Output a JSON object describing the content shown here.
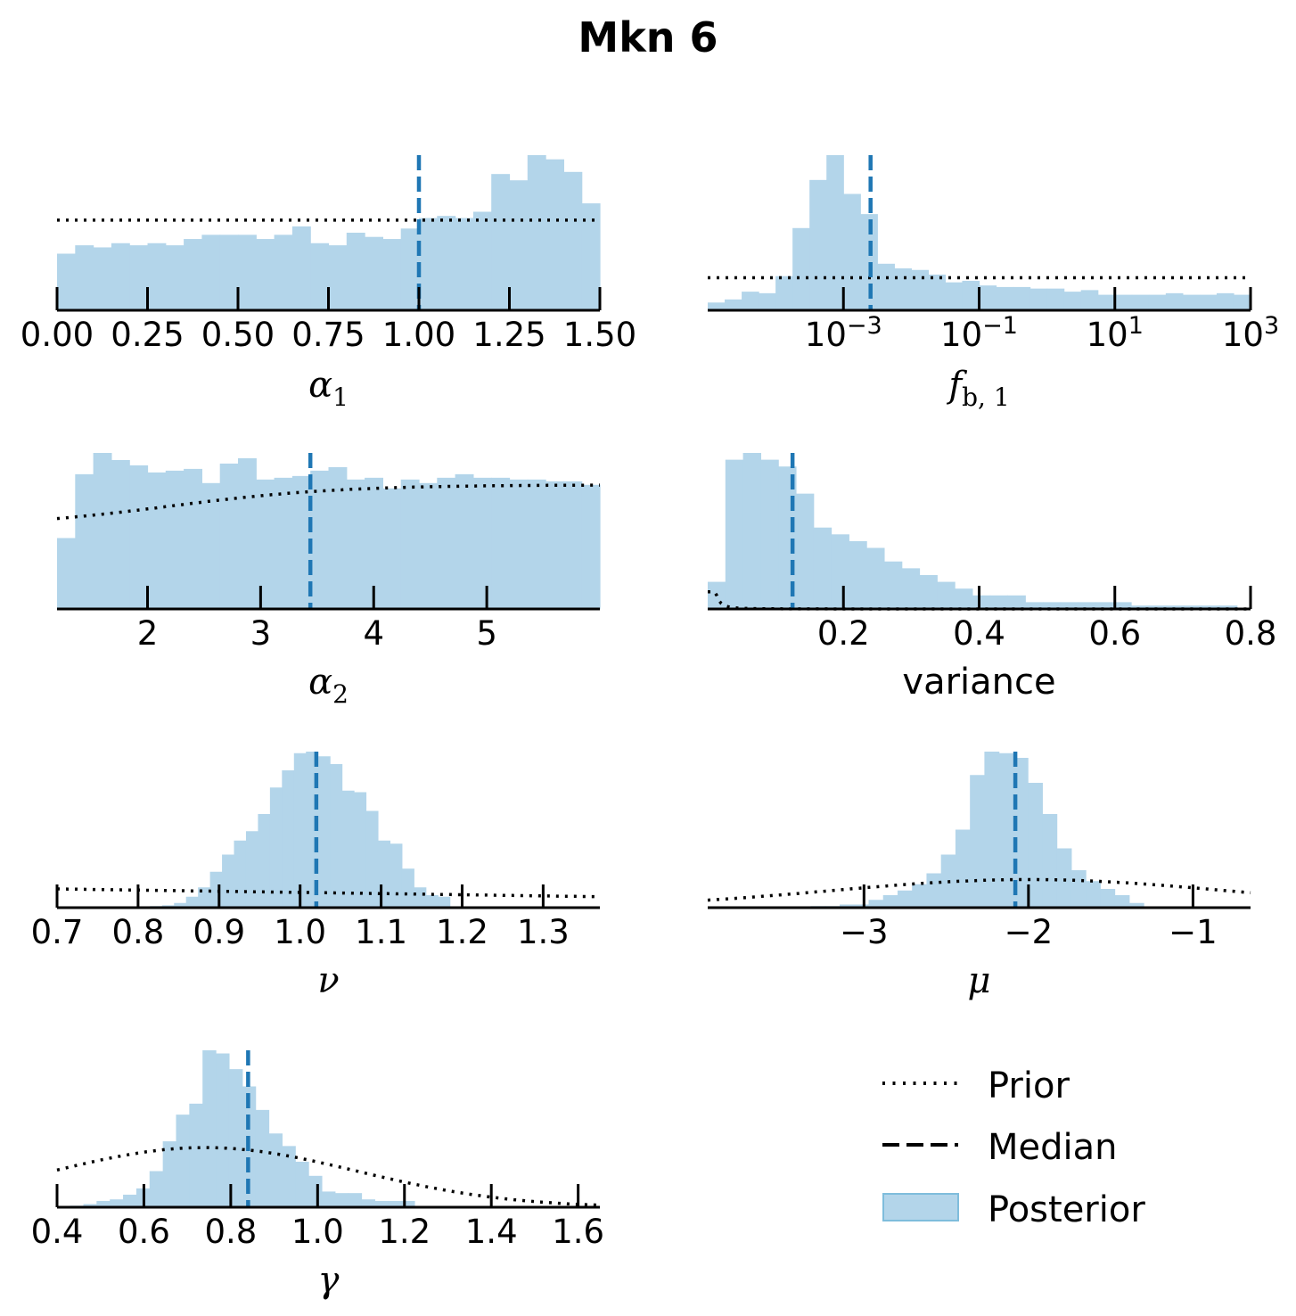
{
  "title": "Mkn 6",
  "colors": {
    "posterior_fill": "#b3d5ea",
    "median_line": "#1f77b4",
    "prior_line": "#000000",
    "legend_patch_edge": "#7fbddc"
  },
  "legend": {
    "prior": "Prior",
    "median": "Median",
    "posterior": "Posterior"
  },
  "chart_data": [
    {
      "type": "histogram",
      "name": "alpha1",
      "xlabel_main": "α",
      "xlabel_sub": "1",
      "scale": "linear",
      "xlim": [
        0.0,
        1.5
      ],
      "ticks": [
        0.0,
        0.25,
        0.5,
        0.75,
        1.0,
        1.25,
        1.5
      ],
      "tick_labels": [
        "0.00",
        "0.25",
        "0.50",
        "0.75",
        "1.00",
        "1.25",
        "1.50"
      ],
      "median": 1.0,
      "bins": {
        "start": 0.0,
        "width": 0.05,
        "counts": [
          27,
          31,
          30,
          32,
          31,
          32,
          31,
          34,
          36,
          36,
          36,
          34,
          36,
          40,
          32,
          31,
          37,
          35,
          34,
          39,
          44,
          45,
          44,
          47,
          65,
          62,
          74,
          72,
          66,
          51
        ]
      },
      "prior": {
        "kind": "uniform",
        "value": 43
      }
    },
    {
      "type": "histogram",
      "name": "f_b1",
      "xlabel_main": "f",
      "xlabel_sub": "b, 1",
      "scale": "log10",
      "xlim": [
        -5.0,
        3.0
      ],
      "ticks": [
        -3,
        -1,
        1,
        3
      ],
      "tick_labels": [
        "10^-3",
        "10^-1",
        "10^1",
        "10^3"
      ],
      "median": -2.6,
      "bins": {
        "start": -5.0,
        "width": 0.25,
        "counts": [
          5,
          7,
          12,
          11,
          22,
          53,
          84,
          100,
          75,
          62,
          30,
          27,
          26,
          23,
          18,
          19,
          16,
          15,
          15,
          14,
          14,
          12,
          13,
          10,
          10,
          10,
          10,
          11,
          10,
          10,
          11,
          10
        ]
      },
      "prior": {
        "kind": "uniform",
        "value": 21
      }
    },
    {
      "type": "histogram",
      "name": "alpha2",
      "xlabel_main": "α",
      "xlabel_sub": "2",
      "scale": "linear",
      "xlim": [
        1.2,
        6.0
      ],
      "ticks": [
        2,
        3,
        4,
        5
      ],
      "tick_labels": [
        "2",
        "3",
        "4",
        "5"
      ],
      "median": 3.44,
      "bins": {
        "start": 1.2,
        "width": 0.16,
        "counts": [
          40,
          76,
          88,
          84,
          81,
          77,
          78,
          79,
          71,
          82,
          85,
          73,
          74,
          75,
          78,
          80,
          73,
          74,
          68,
          73,
          71,
          74,
          76,
          74,
          74,
          73,
          73,
          72,
          72,
          70
        ]
      },
      "prior": {
        "kind": "sigmoid",
        "low": 46,
        "high": 70,
        "mid": 2.2,
        "scale": 0.75
      }
    },
    {
      "type": "histogram",
      "name": "variance",
      "xlabel_main": "variance",
      "xlabel_sub": "",
      "scale": "linear",
      "xlim": [
        0.0,
        0.8
      ],
      "ticks": [
        0.2,
        0.4,
        0.6,
        0.8
      ],
      "tick_labels": [
        "0.2",
        "0.4",
        "0.6",
        "0.8"
      ],
      "median": 0.125,
      "bins": {
        "start": 0.0,
        "width": 0.026,
        "counts": [
          4,
          22,
          23,
          22,
          21,
          17,
          12,
          11,
          10,
          9,
          7,
          6,
          5,
          4,
          3,
          2,
          2,
          2,
          1,
          1,
          1,
          1,
          1,
          1,
          0.5,
          0.5,
          0.5,
          0.5,
          0.5,
          0.5
        ]
      },
      "prior": {
        "kind": "power",
        "amp": 0.00015,
        "exp": -2.2,
        "x0": 0.0
      }
    },
    {
      "type": "histogram",
      "name": "nu",
      "xlabel_main": "ν",
      "xlabel_sub": "",
      "scale": "linear",
      "xlim": [
        0.7,
        1.37
      ],
      "ticks": [
        0.7,
        0.8,
        0.9,
        1.0,
        1.1,
        1.2,
        1.3
      ],
      "tick_labels": [
        "0.7",
        "0.8",
        "0.9",
        "1.0",
        "1.1",
        "1.2",
        "1.3"
      ],
      "median": 1.02,
      "bins": {
        "start": 0.8,
        "width": 0.0148,
        "counts": [
          0.5,
          1,
          1.5,
          3,
          7,
          13,
          23,
          34,
          43,
          49,
          60,
          77,
          88,
          99,
          100,
          97,
          92,
          75,
          74,
          62,
          43,
          41,
          25,
          13,
          8,
          7
        ]
      },
      "prior": {
        "kind": "linear",
        "v0": 12,
        "v1": 7
      }
    },
    {
      "type": "histogram",
      "name": "mu",
      "xlabel_main": "μ",
      "xlabel_sub": "",
      "scale": "linear",
      "xlim": [
        -3.95,
        -0.65
      ],
      "ticks": [
        -3,
        -2,
        -1
      ],
      "tick_labels": [
        "−3",
        "−2",
        "−1"
      ],
      "median": -2.08,
      "bins": {
        "start": -3.5,
        "width": 0.088,
        "counts": [
          0.5,
          0.5,
          1,
          1,
          2,
          2,
          5,
          8,
          11,
          15,
          22,
          34,
          50,
          85,
          100,
          99,
          96,
          80,
          60,
          38,
          24,
          17,
          12,
          8,
          3
        ]
      },
      "prior": {
        "kind": "gauss",
        "mean": -2.0,
        "sigma": 1.2,
        "amp": 18
      }
    },
    {
      "type": "histogram",
      "name": "gamma",
      "xlabel_main": "γ",
      "xlabel_sub": "",
      "scale": "linear",
      "xlim": [
        0.4,
        1.65
      ],
      "ticks": [
        0.4,
        0.6,
        0.8,
        1.0,
        1.2,
        1.4,
        1.6
      ],
      "tick_labels": [
        "0.4",
        "0.6",
        "0.8",
        "1.0",
        "1.2",
        "1.4",
        "1.6"
      ],
      "median": 0.84,
      "bins": {
        "start": 0.43,
        "width": 0.0305,
        "counts": [
          1,
          2,
          4,
          5,
          8,
          12,
          23,
          42,
          59,
          66,
          100,
          98,
          88,
          77,
          62,
          47,
          39,
          29,
          20,
          10,
          9,
          9,
          5,
          4,
          4,
          4
        ]
      },
      "prior": {
        "kind": "gauss",
        "mean": 0.74,
        "sigma": 0.35,
        "amp": 38
      }
    }
  ]
}
